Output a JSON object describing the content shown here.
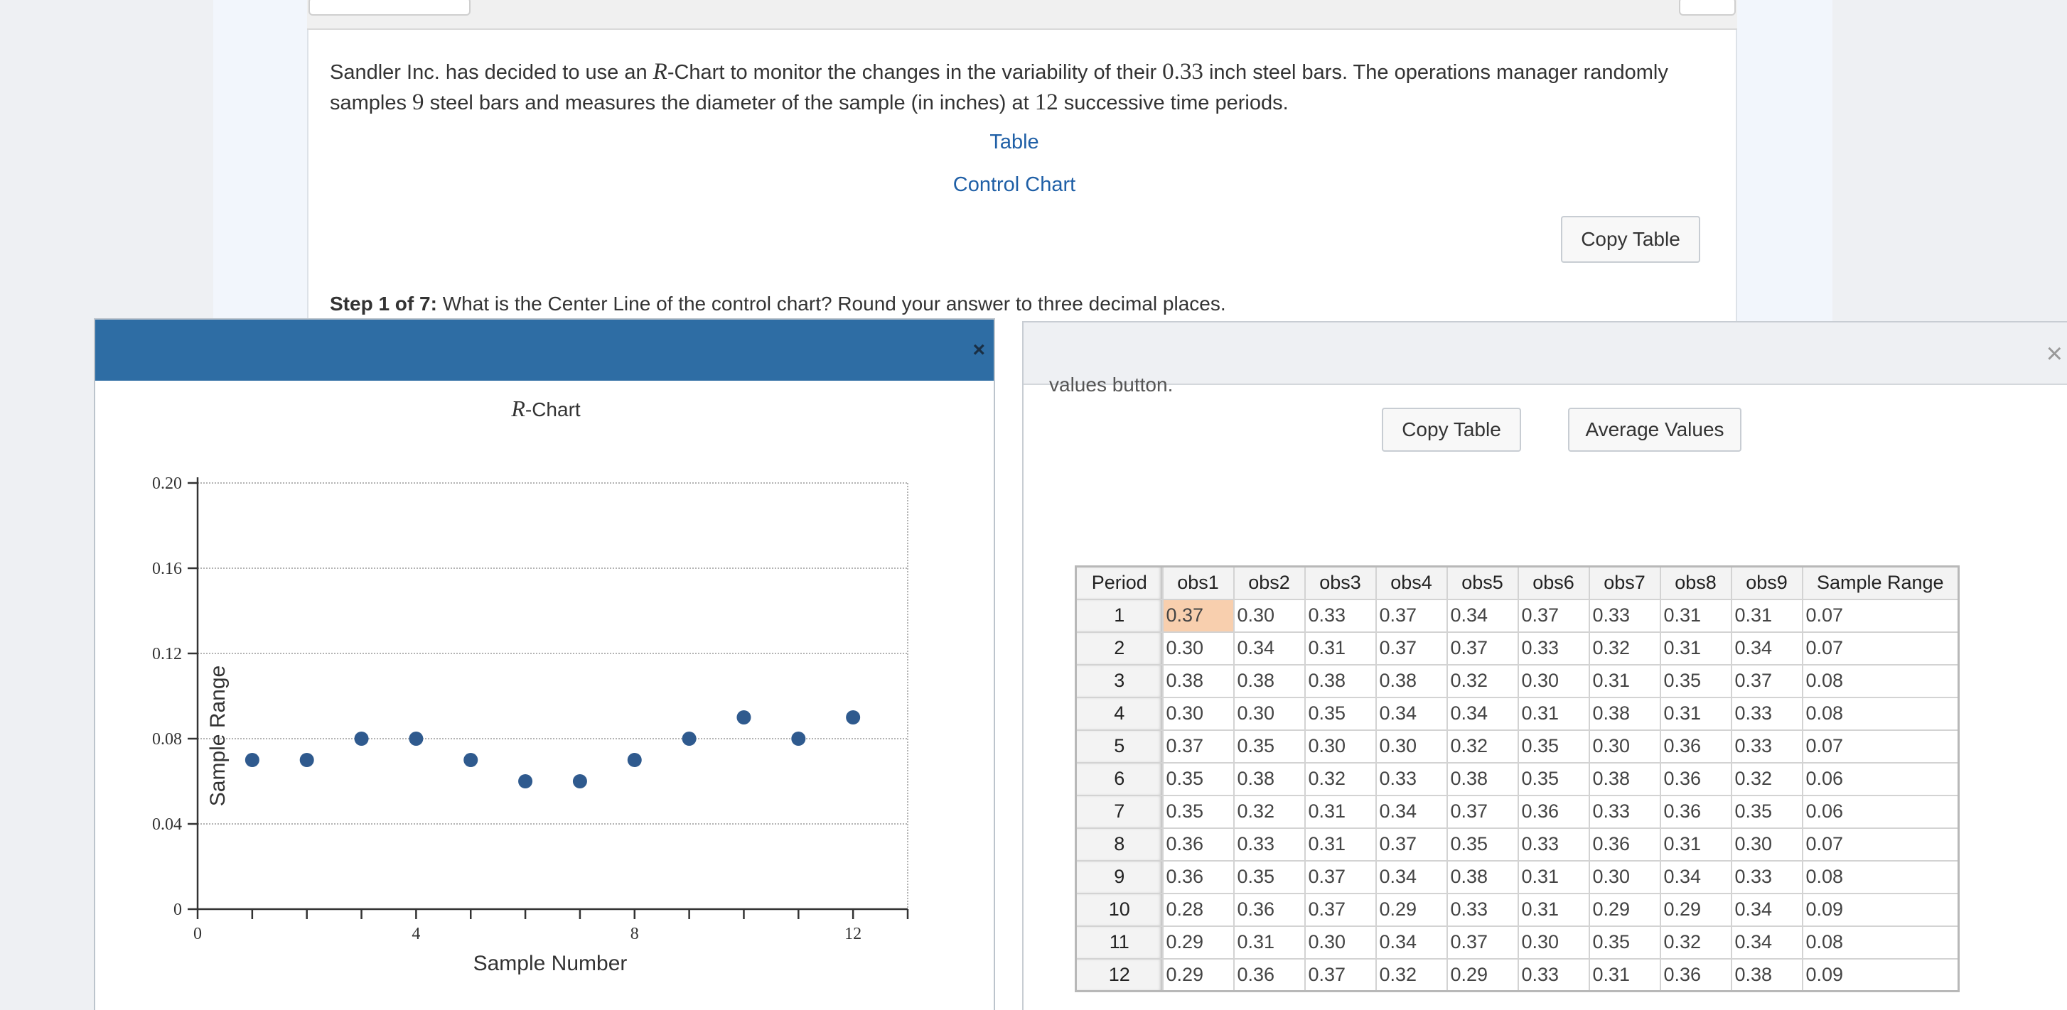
{
  "question": {
    "part1": "Sandler Inc. has decided to use an ",
    "chart_symbol": "R",
    "part2": "-Chart to monitor the changes in the variability of their ",
    "bar_size": "0.33",
    "part3": " inch steel bars. The operations manager randomly samples ",
    "sample_size": "9",
    "part4": " steel bars and measures the diameter of the sample (in inches) at ",
    "periods": "12",
    "part5": " successive time periods."
  },
  "links": {
    "table": "Table",
    "control_chart": "Control Chart"
  },
  "buttons": {
    "copy_table": "Copy Table",
    "average_values": "Average Values"
  },
  "step": {
    "label": "Step 1 of 7:",
    "text": " What is the Center Line of the control chart? Round your answer to three decimal places."
  },
  "chart_dialog": {
    "close": "×"
  },
  "table_dialog": {
    "close": "×",
    "clipped_text": "values button."
  },
  "chart_data": {
    "type": "scatter",
    "title_symbol": "R",
    "title_suffix": "-Chart",
    "xlabel": "Sample Number",
    "ylabel": "Sample Range",
    "xlim": [
      0,
      13
    ],
    "ylim": [
      0,
      0.2
    ],
    "xticks": [
      0,
      4,
      8,
      12
    ],
    "xticks_minor": [
      1,
      2,
      3,
      5,
      6,
      7,
      9,
      10,
      11,
      13
    ],
    "yticks": [
      0,
      0.04,
      0.08,
      0.12,
      0.16,
      0.2
    ],
    "ytick_labels": [
      "0",
      "0.04",
      "0.08",
      "0.12",
      "0.16",
      "0.20"
    ],
    "grid": true,
    "color": "#2f5a8e",
    "x": [
      1,
      2,
      3,
      4,
      5,
      6,
      7,
      8,
      9,
      10,
      11,
      12
    ],
    "y": [
      0.07,
      0.07,
      0.08,
      0.08,
      0.07,
      0.06,
      0.06,
      0.07,
      0.08,
      0.09,
      0.08,
      0.09
    ]
  },
  "table": {
    "columns": [
      "Period",
      "obs1",
      "obs2",
      "obs3",
      "obs4",
      "obs5",
      "obs6",
      "obs7",
      "obs8",
      "obs9",
      "Sample Range"
    ],
    "rows": [
      [
        "1",
        "0.37",
        "0.30",
        "0.33",
        "0.37",
        "0.34",
        "0.37",
        "0.33",
        "0.31",
        "0.31",
        "0.07"
      ],
      [
        "2",
        "0.30",
        "0.34",
        "0.31",
        "0.37",
        "0.37",
        "0.33",
        "0.32",
        "0.31",
        "0.34",
        "0.07"
      ],
      [
        "3",
        "0.38",
        "0.38",
        "0.38",
        "0.38",
        "0.32",
        "0.30",
        "0.31",
        "0.35",
        "0.37",
        "0.08"
      ],
      [
        "4",
        "0.30",
        "0.30",
        "0.35",
        "0.34",
        "0.34",
        "0.31",
        "0.38",
        "0.31",
        "0.33",
        "0.08"
      ],
      [
        "5",
        "0.37",
        "0.35",
        "0.30",
        "0.30",
        "0.32",
        "0.35",
        "0.30",
        "0.36",
        "0.33",
        "0.07"
      ],
      [
        "6",
        "0.35",
        "0.38",
        "0.32",
        "0.33",
        "0.38",
        "0.35",
        "0.38",
        "0.36",
        "0.32",
        "0.06"
      ],
      [
        "7",
        "0.35",
        "0.32",
        "0.31",
        "0.34",
        "0.37",
        "0.36",
        "0.33",
        "0.36",
        "0.35",
        "0.06"
      ],
      [
        "8",
        "0.36",
        "0.33",
        "0.31",
        "0.37",
        "0.35",
        "0.33",
        "0.36",
        "0.31",
        "0.30",
        "0.07"
      ],
      [
        "9",
        "0.36",
        "0.35",
        "0.37",
        "0.34",
        "0.38",
        "0.31",
        "0.30",
        "0.34",
        "0.33",
        "0.08"
      ],
      [
        "10",
        "0.28",
        "0.36",
        "0.37",
        "0.29",
        "0.33",
        "0.31",
        "0.29",
        "0.29",
        "0.34",
        "0.09"
      ],
      [
        "11",
        "0.29",
        "0.31",
        "0.30",
        "0.34",
        "0.37",
        "0.30",
        "0.35",
        "0.32",
        "0.34",
        "0.08"
      ],
      [
        "12",
        "0.29",
        "0.36",
        "0.37",
        "0.32",
        "0.29",
        "0.33",
        "0.31",
        "0.36",
        "0.38",
        "0.09"
      ]
    ],
    "highlight_color": "#f8cfae"
  }
}
